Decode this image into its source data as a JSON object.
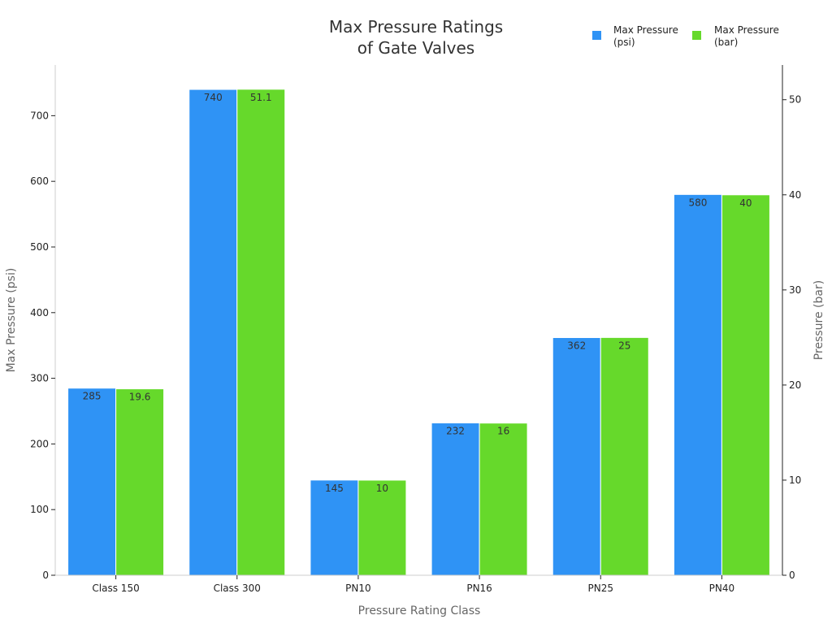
{
  "chart_data": {
    "type": "bar",
    "title_lines": [
      "Max Pressure Ratings",
      "of Gate Valves"
    ],
    "xlabel": "Pressure Rating Class",
    "ylabel_left": "Max Pressure (psi)",
    "ylabel_right": "Pressure (bar)",
    "categories": [
      "Class 150",
      "Class 300",
      "PN10",
      "PN16",
      "PN25",
      "PN40"
    ],
    "series": [
      {
        "name_lines": [
          "Max Pressure",
          "(psi)"
        ],
        "axis": "left",
        "color": "#2f93f5",
        "values": [
          285,
          740,
          145,
          232,
          362,
          580
        ],
        "labels": [
          "285",
          "740",
          "145",
          "232",
          "362",
          "580"
        ]
      },
      {
        "name_lines": [
          "Max Pressure",
          "(bar)"
        ],
        "axis": "right",
        "color": "#66d92b",
        "values": [
          19.6,
          51.1,
          10,
          16,
          25,
          40
        ],
        "labels": [
          "19.6",
          "51.1",
          "10",
          "16",
          "25",
          "40"
        ]
      }
    ],
    "ylim_left": [
      0,
      777.2
    ],
    "ylim_right": [
      0,
      53.65
    ],
    "yticks_left": [
      0,
      100,
      200,
      300,
      400,
      500,
      600,
      700
    ],
    "yticks_right": [
      0,
      10,
      20,
      30,
      40,
      50
    ],
    "grid": false,
    "legend_position": "top-right"
  }
}
